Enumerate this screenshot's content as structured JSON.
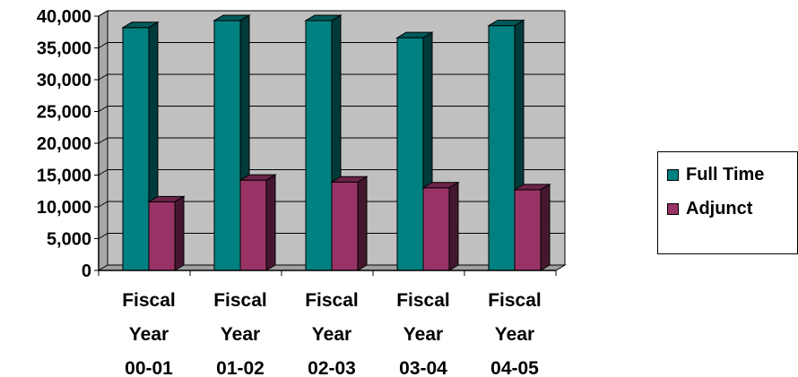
{
  "chart_data": {
    "type": "bar",
    "categories": [
      [
        "Fiscal",
        "Year",
        "00-01"
      ],
      [
        "Fiscal",
        "Year",
        "01-02"
      ],
      [
        "Fiscal",
        "Year",
        "02-03"
      ],
      [
        "Fiscal",
        "Year",
        "03-04"
      ],
      [
        "Fiscal",
        "Year",
        "04-05"
      ]
    ],
    "series": [
      {
        "name": "Full Time",
        "values": [
          38200,
          39300,
          39300,
          36600,
          38500
        ],
        "color": "#008080"
      },
      {
        "name": "Adjunct",
        "values": [
          10800,
          14200,
          13900,
          13000,
          12700
        ],
        "color": "#993366"
      }
    ],
    "yticks": [
      "0",
      "5,000",
      "10,000",
      "15,000",
      "20,000",
      "25,000",
      "30,000",
      "35,000",
      "40,000"
    ],
    "ylim": [
      0,
      40000
    ],
    "grid": true,
    "three_d": true,
    "plot_background": "#c0c0c0",
    "legend_position": "right"
  }
}
